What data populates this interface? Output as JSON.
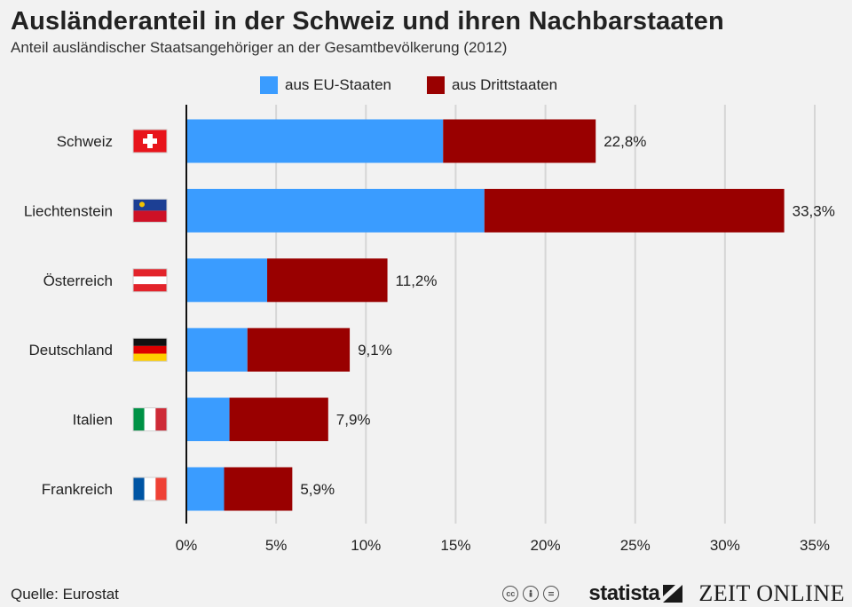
{
  "title": "Ausländeranteil in der Schweiz und ihren Nachbarstaaten",
  "subtitle": "Anteil ausländischer Staatsangehöriger an der Gesamtbevölkerung (2012)",
  "source": "Quelle: Eurostat",
  "brand": {
    "statista": "statista",
    "zeit": "ZEIT ONLINE",
    "license_icons": [
      "cc-icon",
      "by-icon",
      "nd-icon"
    ]
  },
  "colors": {
    "eu": "#3a9cff",
    "third": "#990000",
    "grid": "#d6d6d6",
    "axis": "#111111",
    "background": "#f2f2f2"
  },
  "chart_data": {
    "type": "bar",
    "orientation": "horizontal",
    "stacked": true,
    "title": "Ausländeranteil in der Schweiz und ihren Nachbarstaaten",
    "categories": [
      "Schweiz",
      "Liechtenstein",
      "Österreich",
      "Deutschland",
      "Italien",
      "Frankreich"
    ],
    "flags": [
      "swiss-flag-icon",
      "liechtenstein-flag-icon",
      "austria-flag-icon",
      "germany-flag-icon",
      "italy-flag-icon",
      "france-flag-icon"
    ],
    "series": [
      {
        "name": "aus EU-Staaten",
        "values": [
          14.3,
          16.6,
          4.5,
          3.4,
          2.4,
          2.1
        ]
      },
      {
        "name": "aus Drittstaaten",
        "values": [
          8.5,
          16.7,
          6.7,
          5.7,
          5.5,
          3.8
        ]
      }
    ],
    "totals_labels": [
      "22,8%",
      "33,3%",
      "11,2%",
      "9,1%",
      "7,9%",
      "5,9%"
    ],
    "xlim": [
      0,
      35
    ],
    "xticks": [
      0,
      5,
      10,
      15,
      20,
      25,
      30,
      35
    ],
    "xtick_labels": [
      "0%",
      "5%",
      "10%",
      "15%",
      "20%",
      "25%",
      "30%",
      "35%"
    ],
    "legend_position": "top",
    "grid": true
  }
}
